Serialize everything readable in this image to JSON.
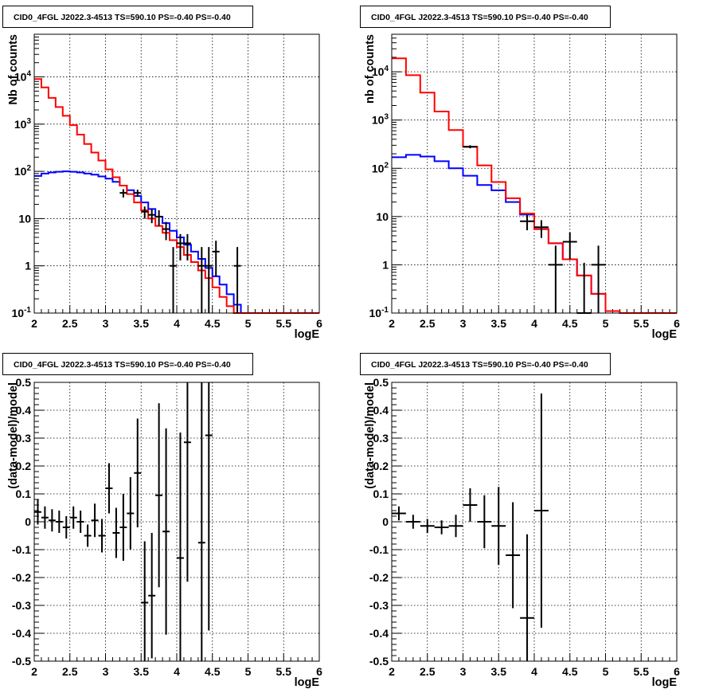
{
  "colors": {
    "data": "#000000",
    "total_model": "#ff0000",
    "background_model": "#0000ff",
    "grid": "#000000"
  },
  "chart_data": [
    {
      "type": "line",
      "title": "CID0_4FGL J2022.3-4513 TS=590.10 PS=-0.40 PS=-0.40",
      "xlabel": "logE",
      "ylabel": "Nb of counts",
      "yscale": "log",
      "xlim": [
        2,
        6
      ],
      "ylim": [
        0.1,
        80000
      ],
      "grid": true,
      "xticks": [
        "2",
        "2.5",
        "3",
        "3.5",
        "4",
        "4.5",
        "5",
        "5.5",
        "6"
      ],
      "yticks": [
        "10^-1",
        "1",
        "10",
        "10^2",
        "10^3",
        "10^4"
      ],
      "bin_edges": [
        2.0,
        2.1,
        2.2,
        2.3,
        2.4,
        2.5,
        2.6,
        2.7,
        2.8,
        2.9,
        3.0,
        3.1,
        3.2,
        3.3,
        3.4,
        3.5,
        3.6,
        3.7,
        3.8,
        3.9,
        4.0,
        4.1,
        4.2,
        4.3,
        4.4,
        4.5,
        4.6,
        4.7,
        4.8,
        4.9,
        5.0,
        5.1,
        5.2,
        5.3,
        5.4,
        5.5,
        5.6,
        5.7,
        5.8,
        5.9,
        6.0
      ],
      "series": [
        {
          "role": "total_model",
          "values": [
            9000,
            6000,
            3600,
            2300,
            1500,
            950,
            600,
            380,
            250,
            170,
            110,
            75,
            50,
            33,
            22,
            15,
            10,
            7,
            5,
            3.5,
            2.5,
            1.7,
            1.2,
            0.8,
            0.55,
            0.35,
            0.22,
            0.14,
            0.1,
            0.09,
            0.09,
            0.09,
            0.09,
            0.09,
            0.09,
            0.09,
            0.09,
            0.09,
            0.09,
            0.09
          ]
        },
        {
          "role": "background_model",
          "values": [
            80,
            90,
            95,
            98,
            100,
            98,
            95,
            90,
            85,
            78,
            70,
            60,
            50,
            40,
            30,
            22,
            16,
            11,
            8,
            5.5,
            4,
            2.8,
            2,
            1.4,
            0.9,
            0.6,
            0.4,
            0.25,
            0.15,
            0.1,
            0.09,
            0.09,
            0.09,
            0.09,
            0.09,
            0.09,
            0.09,
            0.09,
            0.09,
            0.09
          ]
        },
        {
          "role": "data",
          "points": [
            {
              "x": 3.25,
              "y": 35,
              "ylo": 28,
              "yhi": 42
            },
            {
              "x": 3.45,
              "y": 35,
              "ylo": 29,
              "yhi": 41
            },
            {
              "x": 3.55,
              "y": 14,
              "ylo": 10,
              "yhi": 18
            },
            {
              "x": 3.65,
              "y": 12,
              "ylo": 8,
              "yhi": 16
            },
            {
              "x": 3.75,
              "y": 11,
              "ylo": 7,
              "yhi": 15
            },
            {
              "x": 3.85,
              "y": 6,
              "ylo": 3.5,
              "yhi": 8.5
            },
            {
              "x": 3.95,
              "y": 1,
              "ylo": 0.1,
              "yhi": 2.5
            },
            {
              "x": 4.05,
              "y": 3,
              "ylo": 1.3,
              "yhi": 4.7
            },
            {
              "x": 4.15,
              "y": 3,
              "ylo": 1.3,
              "yhi": 4.7
            },
            {
              "x": 4.35,
              "y": 1,
              "ylo": 0.1,
              "yhi": 2.5
            },
            {
              "x": 4.45,
              "y": 1,
              "ylo": 0.1,
              "yhi": 2.5
            },
            {
              "x": 4.55,
              "y": 2,
              "ylo": 0.6,
              "yhi": 3.4
            },
            {
              "x": 4.85,
              "y": 1,
              "ylo": 0.1,
              "yhi": 2.5
            }
          ]
        }
      ]
    },
    {
      "type": "line",
      "title": "CID0_4FGL J2022.3-4513 TS=590.10 PS=-0.40 PS=-0.40",
      "xlabel": "logE",
      "ylabel": "nb of counts",
      "yscale": "log",
      "xlim": [
        2,
        6
      ],
      "ylim": [
        0.1,
        60000
      ],
      "grid": true,
      "xticks": [
        "2",
        "2.5",
        "3",
        "3.5",
        "4",
        "4.5",
        "5",
        "5.5",
        "6"
      ],
      "yticks": [
        "10^-1",
        "1",
        "10",
        "10^2",
        "10^3",
        "10^4"
      ],
      "bin_edges": [
        2.0,
        2.2,
        2.4,
        2.6,
        2.8,
        3.0,
        3.2,
        3.4,
        3.6,
        3.8,
        4.0,
        4.2,
        4.4,
        4.6,
        4.8,
        5.0,
        5.2,
        5.4,
        5.6,
        5.8,
        6.0
      ],
      "series": [
        {
          "role": "total_model",
          "values": [
            19000,
            8500,
            3700,
            1500,
            620,
            280,
            115,
            52,
            24,
            11.5,
            5.5,
            2.8,
            1.3,
            0.6,
            0.25,
            0.11,
            0.09,
            0.09,
            0.09,
            0.09
          ]
        },
        {
          "role": "background_model",
          "values": [
            170,
            190,
            175,
            140,
            100,
            70,
            45,
            35,
            20,
            11,
            5.5,
            2.8,
            1.3,
            0.6,
            0.25,
            0.11,
            0.09,
            0.09,
            0.09,
            0.09
          ]
        },
        {
          "role": "data",
          "points": [
            {
              "x": 3.1,
              "y": 280,
              "ylo": 260,
              "yhi": 300
            },
            {
              "x": 3.9,
              "y": 8,
              "ylo": 5.2,
              "yhi": 10.8
            },
            {
              "x": 4.1,
              "y": 6,
              "ylo": 3.6,
              "yhi": 8.4
            },
            {
              "x": 4.3,
              "y": 1,
              "ylo": 0.1,
              "yhi": 2.5
            },
            {
              "x": 4.5,
              "y": 3,
              "ylo": 1.3,
              "yhi": 4.7
            },
            {
              "x": 4.7,
              "y": 0.1,
              "ylo": 0.1,
              "yhi": 1.1
            },
            {
              "x": 4.9,
              "y": 1,
              "ylo": 0.1,
              "yhi": 2.5
            }
          ]
        }
      ]
    },
    {
      "type": "scatter",
      "title": "CID0_4FGL J2022.3-4513 TS=590.10 PS=-0.40 PS=-0.40",
      "xlabel": "logE",
      "ylabel": "(data-model)/model",
      "xlim": [
        2,
        6
      ],
      "ylim": [
        -0.5,
        0.5
      ],
      "grid": true,
      "xticks": [
        "2",
        "2.5",
        "3",
        "3.5",
        "4",
        "4.5",
        "5",
        "5.5",
        "6"
      ],
      "yticks": [
        "-0.5",
        "-0.4",
        "-0.3",
        "-0.2",
        "-0.1",
        "0",
        "0.1",
        "0.2",
        "0.3",
        "0.4",
        "0.5"
      ],
      "points": [
        {
          "x": 2.05,
          "y": 0.035,
          "err": 0.045
        },
        {
          "x": 2.15,
          "y": 0.015,
          "err": 0.04
        },
        {
          "x": 2.25,
          "y": 0.005,
          "err": 0.04
        },
        {
          "x": 2.35,
          "y": 0.0,
          "err": 0.04
        },
        {
          "x": 2.45,
          "y": -0.02,
          "err": 0.04
        },
        {
          "x": 2.55,
          "y": 0.015,
          "err": 0.04
        },
        {
          "x": 2.65,
          "y": 0.0,
          "err": 0.04
        },
        {
          "x": 2.75,
          "y": -0.05,
          "err": 0.04
        },
        {
          "x": 2.85,
          "y": 0.005,
          "err": 0.06
        },
        {
          "x": 2.95,
          "y": -0.05,
          "err": 0.06
        },
        {
          "x": 3.05,
          "y": 0.12,
          "err": 0.09
        },
        {
          "x": 3.15,
          "y": -0.04,
          "err": 0.09
        },
        {
          "x": 3.25,
          "y": -0.02,
          "err": 0.12
        },
        {
          "x": 3.35,
          "y": 0.03,
          "err": 0.13
        },
        {
          "x": 3.45,
          "y": 0.175,
          "err": 0.195
        },
        {
          "x": 3.55,
          "y": -0.29,
          "err": 0.22
        },
        {
          "x": 3.65,
          "y": -0.265,
          "err": 0.225
        },
        {
          "x": 3.75,
          "y": 0.095,
          "err": 0.33
        },
        {
          "x": 3.85,
          "y": -0.035,
          "err": 0.37
        },
        {
          "x": 4.05,
          "y": -0.13,
          "err": 0.45
        },
        {
          "x": 4.15,
          "y": 0.285,
          "err": 0.5
        },
        {
          "x": 4.35,
          "y": -0.075,
          "err": 0.6
        },
        {
          "x": 4.45,
          "y": 0.31,
          "err": 0.7
        }
      ]
    },
    {
      "type": "scatter",
      "title": "CID0_4FGL J2022.3-4513 TS=590.10 PS=-0.40 PS=-0.40",
      "xlabel": "logE",
      "ylabel": "(data-model)/model",
      "xlim": [
        2,
        6
      ],
      "ylim": [
        -0.5,
        0.5
      ],
      "grid": true,
      "xticks": [
        "2",
        "2.5",
        "3",
        "3.5",
        "4",
        "4.5",
        "5",
        "5.5",
        "6"
      ],
      "yticks": [
        "-0.5",
        "-0.4",
        "-0.3",
        "-0.2",
        "-0.1",
        "0",
        "0.1",
        "0.2",
        "0.3",
        "0.4",
        "0.5"
      ],
      "points": [
        {
          "x": 2.1,
          "y": 0.03,
          "err": 0.025
        },
        {
          "x": 2.3,
          "y": 0.0,
          "err": 0.025
        },
        {
          "x": 2.5,
          "y": -0.015,
          "err": 0.025
        },
        {
          "x": 2.7,
          "y": -0.02,
          "err": 0.025
        },
        {
          "x": 2.9,
          "y": -0.015,
          "err": 0.04
        },
        {
          "x": 3.1,
          "y": 0.06,
          "err": 0.06
        },
        {
          "x": 3.3,
          "y": 0.0,
          "err": 0.095
        },
        {
          "x": 3.5,
          "y": -0.015,
          "err": 0.14
        },
        {
          "x": 3.7,
          "y": -0.12,
          "err": 0.19
        },
        {
          "x": 3.9,
          "y": -0.345,
          "err": 0.3
        },
        {
          "x": 4.1,
          "y": 0.04,
          "err": 0.42
        }
      ]
    }
  ]
}
